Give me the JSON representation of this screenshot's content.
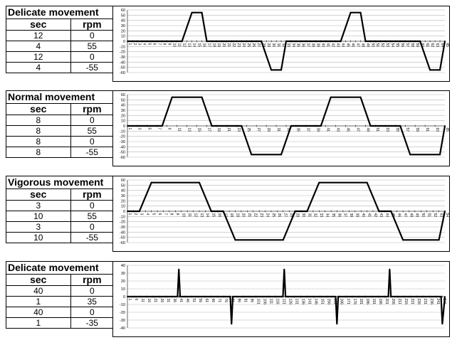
{
  "panels": [
    {
      "title": "Delicate movement",
      "col_sec": "sec",
      "col_rpm": "rpm",
      "rows": [
        {
          "sec": "12",
          "rpm": "0"
        },
        {
          "sec": "4",
          "rpm": "55"
        },
        {
          "sec": "12",
          "rpm": "0"
        },
        {
          "sec": "4",
          "rpm": "-55"
        }
      ]
    },
    {
      "title": "Normal movement",
      "col_sec": "sec",
      "col_rpm": "rpm",
      "rows": [
        {
          "sec": "8",
          "rpm": "0"
        },
        {
          "sec": "8",
          "rpm": "55"
        },
        {
          "sec": "8",
          "rpm": "0"
        },
        {
          "sec": "8",
          "rpm": "-55"
        }
      ]
    },
    {
      "title": "Vigorous movement",
      "col_sec": "sec",
      "col_rpm": "rpm",
      "rows": [
        {
          "sec": "3",
          "rpm": "0"
        },
        {
          "sec": "10",
          "rpm": "55"
        },
        {
          "sec": "3",
          "rpm": "0"
        },
        {
          "sec": "10",
          "rpm": "-55"
        }
      ]
    },
    {
      "title": "Delicate movement",
      "col_sec": "sec",
      "col_rpm": "rpm",
      "rows": [
        {
          "sec": "40",
          "rpm": "0"
        },
        {
          "sec": "1",
          "rpm": "35"
        },
        {
          "sec": "40",
          "rpm": "0"
        },
        {
          "sec": "1",
          "rpm": "-35"
        }
      ]
    }
  ],
  "chart_data": [
    {
      "type": "line",
      "title": "",
      "xlabel": "",
      "ylabel": "",
      "ylim": [
        -60,
        60
      ],
      "yticks": [
        60,
        50,
        40,
        30,
        20,
        10,
        0,
        -10,
        -20,
        -30,
        -40,
        -50,
        -60
      ],
      "xlim": [
        1,
        65
      ],
      "xtick_start": 1,
      "xtick_step": 1,
      "xtick_end": 65,
      "x": [
        1,
        12,
        14,
        16,
        17,
        28,
        30,
        32,
        33,
        44,
        46,
        48,
        49,
        60,
        62,
        64,
        65
      ],
      "y": [
        0,
        0,
        55,
        55,
        0,
        0,
        -55,
        -55,
        0,
        0,
        55,
        55,
        0,
        0,
        -55,
        -55,
        0
      ],
      "grid": true
    },
    {
      "type": "line",
      "title": "",
      "xlabel": "",
      "ylabel": "",
      "ylim": [
        -60,
        60
      ],
      "yticks": [
        60,
        50,
        40,
        30,
        20,
        10,
        0,
        -10,
        -20,
        -30,
        -40,
        -50,
        -60
      ],
      "xlim": [
        1,
        65
      ],
      "xtick_start": 1,
      "xtick_step": 2,
      "xtick_end": 65,
      "x": [
        1,
        8,
        10,
        16,
        18,
        24,
        26,
        32,
        34,
        40,
        42,
        48,
        50,
        56,
        58,
        64,
        65
      ],
      "y": [
        0,
        0,
        55,
        55,
        0,
        0,
        -55,
        -55,
        0,
        0,
        55,
        55,
        0,
        0,
        -55,
        -55,
        0
      ],
      "grid": true
    },
    {
      "type": "line",
      "title": "",
      "xlabel": "",
      "ylabel": "",
      "ylim": [
        -60,
        60
      ],
      "yticks": [
        60,
        50,
        40,
        30,
        20,
        10,
        0,
        -10,
        -20,
        -30,
        -40,
        -50,
        -60
      ],
      "xlim": [
        1,
        54
      ],
      "xtick_start": 1,
      "xtick_step": 1,
      "xtick_end": 54,
      "x": [
        1,
        3,
        5,
        13,
        15,
        17,
        19,
        27,
        29,
        31,
        33,
        41,
        43,
        45,
        47,
        53,
        54
      ],
      "y": [
        0,
        0,
        55,
        55,
        0,
        0,
        -55,
        -55,
        0,
        0,
        55,
        55,
        0,
        0,
        -55,
        -55,
        0
      ],
      "grid": true
    },
    {
      "type": "line",
      "title": "",
      "xlabel": "",
      "ylabel": "",
      "ylim": [
        -40,
        40
      ],
      "yticks": [
        40,
        30,
        20,
        10,
        0,
        -10,
        -20,
        -30,
        -40
      ],
      "xlim": [
        1,
        248
      ],
      "xtick_start": 1,
      "xtick_step": 5,
      "xtick_end": 246,
      "x": [
        1,
        40,
        41,
        42,
        81,
        82,
        83,
        122,
        123,
        124,
        163,
        164,
        165,
        204,
        205,
        206,
        245,
        246,
        248
      ],
      "y": [
        0,
        0,
        35,
        0,
        0,
        -35,
        0,
        0,
        35,
        0,
        0,
        -35,
        0,
        0,
        35,
        0,
        0,
        -35,
        0
      ],
      "grid": true
    }
  ]
}
